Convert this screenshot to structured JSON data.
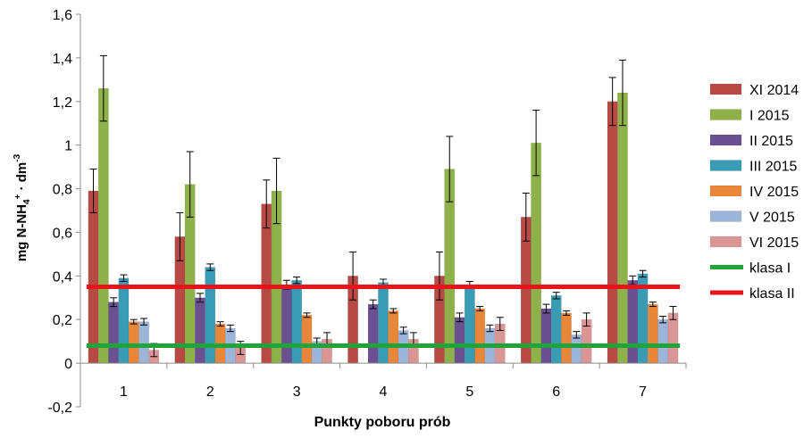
{
  "chart_data": {
    "type": "bar",
    "xlabel": "Punkty poboru prób",
    "ylabel": {
      "base": "mg N-NH",
      "sub": "4",
      "sup": "+",
      "mid": " · dm",
      "sup2": "-3"
    },
    "ylim": [
      -0.2,
      1.6
    ],
    "yticks": [
      -0.2,
      0,
      0.2,
      0.4,
      0.6,
      0.8,
      1,
      1.2,
      1.4,
      1.6
    ],
    "ytick_labels": [
      "-0,2",
      "0",
      "0,2",
      "0,4",
      "0,6",
      "0,8",
      "1",
      "1,2",
      "1,4",
      "1,6"
    ],
    "grid": false,
    "legend_position": "right",
    "categories": [
      "1",
      "2",
      "3",
      "4",
      "5",
      "6",
      "7"
    ],
    "series": [
      {
        "name": "XI 2014",
        "color": "#b84a46",
        "values": [
          0.79,
          0.58,
          0.73,
          0.4,
          0.4,
          0.67,
          1.2
        ],
        "errors": [
          0.1,
          0.11,
          0.11,
          0.11,
          0.11,
          0.11,
          0.11
        ]
      },
      {
        "name": "I 2015",
        "color": "#8fb14a",
        "values": [
          1.26,
          0.82,
          0.79,
          0.0,
          0.89,
          1.01,
          1.24
        ],
        "errors": [
          0.15,
          0.15,
          0.15,
          0.0,
          0.15,
          0.15,
          0.15
        ]
      },
      {
        "name": "II 2015",
        "color": "#6a4f91",
        "values": [
          0.28,
          0.3,
          0.36,
          0.27,
          0.21,
          0.25,
          0.38
        ],
        "errors": [
          0.02,
          0.02,
          0.02,
          0.02,
          0.02,
          0.02,
          0.02
        ]
      },
      {
        "name": "III 2015",
        "color": "#3a9bb5",
        "values": [
          0.39,
          0.44,
          0.38,
          0.37,
          0.36,
          0.31,
          0.41
        ],
        "errors": [
          0.015,
          0.015,
          0.015,
          0.015,
          0.015,
          0.015,
          0.015
        ]
      },
      {
        "name": "IV 2015",
        "color": "#e8873a",
        "values": [
          0.19,
          0.18,
          0.22,
          0.24,
          0.25,
          0.23,
          0.27
        ],
        "errors": [
          0.01,
          0.01,
          0.01,
          0.01,
          0.01,
          0.01,
          0.01
        ]
      },
      {
        "name": "V 2015",
        "color": "#9db4d9",
        "values": [
          0.19,
          0.16,
          0.1,
          0.15,
          0.16,
          0.13,
          0.2
        ],
        "errors": [
          0.015,
          0.015,
          0.015,
          0.015,
          0.015,
          0.015,
          0.015
        ]
      },
      {
        "name": "VI 2015",
        "color": "#da9694",
        "values": [
          0.06,
          0.07,
          0.11,
          0.11,
          0.18,
          0.2,
          0.23
        ],
        "errors": [
          0.03,
          0.03,
          0.03,
          0.03,
          0.03,
          0.03,
          0.03
        ]
      }
    ],
    "reference_lines": [
      {
        "name": "klasa I",
        "color": "#1fa33b",
        "value": 0.08
      },
      {
        "name": "klasa II",
        "color": "#e8141c",
        "value": 0.35
      }
    ]
  }
}
